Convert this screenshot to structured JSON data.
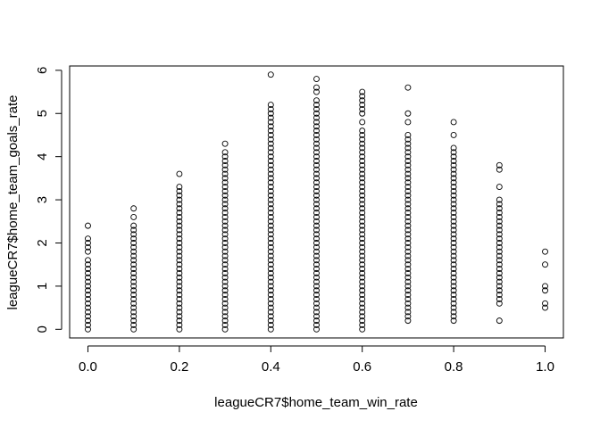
{
  "chart_data": {
    "type": "scatter",
    "title": "",
    "xlabel": "leagueCR7$home_team_win_rate",
    "ylabel": "leagueCR7$home_team_goals_rate",
    "xlim": [
      -0.04,
      1.04
    ],
    "ylim": [
      -0.2,
      6.1
    ],
    "x_ticks": [
      0.0,
      0.2,
      0.4,
      0.6,
      0.8,
      1.0
    ],
    "x_tick_labels": [
      "0.0",
      "0.2",
      "0.4",
      "0.6",
      "0.8",
      "1.0"
    ],
    "y_ticks": [
      0,
      1,
      2,
      3,
      4,
      5,
      6
    ],
    "y_tick_labels": [
      "0",
      "1",
      "2",
      "3",
      "4",
      "5",
      "6"
    ],
    "grid": false,
    "legend": "none",
    "marker": "open-circle",
    "columns": [
      {
        "x": 0.0,
        "y": [
          0.0,
          0.1,
          0.2,
          0.3,
          0.4,
          0.5,
          0.6,
          0.7,
          0.8,
          0.9,
          1.0,
          1.1,
          1.2,
          1.3,
          1.4,
          1.5,
          1.6,
          1.8,
          1.9,
          2.0,
          2.1,
          2.4
        ]
      },
      {
        "x": 0.1,
        "y": [
          0.0,
          0.1,
          0.2,
          0.3,
          0.4,
          0.5,
          0.6,
          0.7,
          0.8,
          0.9,
          1.0,
          1.1,
          1.2,
          1.3,
          1.4,
          1.5,
          1.6,
          1.7,
          1.8,
          1.9,
          2.0,
          2.1,
          2.2,
          2.3,
          2.4,
          2.6,
          2.8
        ]
      },
      {
        "x": 0.2,
        "y": [
          0.0,
          0.1,
          0.2,
          0.3,
          0.4,
          0.5,
          0.6,
          0.7,
          0.8,
          0.9,
          1.0,
          1.1,
          1.2,
          1.3,
          1.4,
          1.5,
          1.6,
          1.7,
          1.8,
          1.9,
          2.0,
          2.1,
          2.2,
          2.3,
          2.4,
          2.5,
          2.6,
          2.7,
          2.8,
          2.9,
          3.0,
          3.1,
          3.2,
          3.3,
          3.6
        ]
      },
      {
        "x": 0.3,
        "y": [
          0.0,
          0.1,
          0.2,
          0.3,
          0.4,
          0.5,
          0.6,
          0.7,
          0.8,
          0.9,
          1.0,
          1.1,
          1.2,
          1.3,
          1.4,
          1.5,
          1.6,
          1.7,
          1.8,
          1.9,
          2.0,
          2.1,
          2.2,
          2.3,
          2.4,
          2.5,
          2.6,
          2.7,
          2.8,
          2.9,
          3.0,
          3.1,
          3.2,
          3.3,
          3.4,
          3.5,
          3.6,
          3.7,
          3.8,
          3.9,
          4.0,
          4.1,
          4.3
        ]
      },
      {
        "x": 0.4,
        "y": [
          0.0,
          0.1,
          0.2,
          0.3,
          0.4,
          0.5,
          0.6,
          0.7,
          0.8,
          0.9,
          1.0,
          1.1,
          1.2,
          1.3,
          1.4,
          1.5,
          1.6,
          1.7,
          1.8,
          1.9,
          2.0,
          2.1,
          2.2,
          2.3,
          2.4,
          2.5,
          2.6,
          2.7,
          2.8,
          2.9,
          3.0,
          3.1,
          3.2,
          3.3,
          3.4,
          3.5,
          3.6,
          3.7,
          3.8,
          3.9,
          4.0,
          4.1,
          4.2,
          4.3,
          4.4,
          4.5,
          4.6,
          4.7,
          4.8,
          4.9,
          5.0,
          5.1,
          5.2,
          5.9
        ]
      },
      {
        "x": 0.5,
        "y": [
          0.0,
          0.1,
          0.2,
          0.3,
          0.4,
          0.5,
          0.6,
          0.7,
          0.8,
          0.9,
          1.0,
          1.1,
          1.2,
          1.3,
          1.4,
          1.5,
          1.6,
          1.7,
          1.8,
          1.9,
          2.0,
          2.1,
          2.2,
          2.3,
          2.4,
          2.5,
          2.6,
          2.7,
          2.8,
          2.9,
          3.0,
          3.1,
          3.2,
          3.3,
          3.4,
          3.5,
          3.6,
          3.7,
          3.8,
          3.9,
          4.0,
          4.1,
          4.2,
          4.3,
          4.4,
          4.5,
          4.6,
          4.7,
          4.8,
          4.9,
          5.0,
          5.1,
          5.2,
          5.3,
          5.5,
          5.6,
          5.8
        ]
      },
      {
        "x": 0.6,
        "y": [
          0.0,
          0.1,
          0.2,
          0.3,
          0.4,
          0.5,
          0.6,
          0.7,
          0.8,
          0.9,
          1.0,
          1.1,
          1.2,
          1.3,
          1.4,
          1.5,
          1.6,
          1.7,
          1.8,
          1.9,
          2.0,
          2.1,
          2.2,
          2.3,
          2.4,
          2.5,
          2.6,
          2.7,
          2.8,
          2.9,
          3.0,
          3.1,
          3.2,
          3.3,
          3.4,
          3.5,
          3.6,
          3.7,
          3.8,
          3.9,
          4.0,
          4.1,
          4.2,
          4.3,
          4.4,
          4.5,
          4.6,
          4.8,
          5.0,
          5.1,
          5.2,
          5.3,
          5.4,
          5.5
        ]
      },
      {
        "x": 0.7,
        "y": [
          0.2,
          0.3,
          0.4,
          0.5,
          0.6,
          0.7,
          0.8,
          0.9,
          1.0,
          1.1,
          1.2,
          1.3,
          1.4,
          1.5,
          1.6,
          1.7,
          1.8,
          1.9,
          2.0,
          2.1,
          2.2,
          2.3,
          2.4,
          2.5,
          2.6,
          2.7,
          2.8,
          2.9,
          3.0,
          3.1,
          3.2,
          3.3,
          3.4,
          3.5,
          3.6,
          3.7,
          3.8,
          3.9,
          4.0,
          4.1,
          4.2,
          4.3,
          4.4,
          4.5,
          4.8,
          5.0,
          5.6
        ]
      },
      {
        "x": 0.8,
        "y": [
          0.2,
          0.3,
          0.4,
          0.5,
          0.6,
          0.7,
          0.8,
          0.9,
          1.0,
          1.1,
          1.2,
          1.3,
          1.4,
          1.5,
          1.6,
          1.7,
          1.8,
          1.9,
          2.0,
          2.1,
          2.2,
          2.3,
          2.4,
          2.5,
          2.6,
          2.7,
          2.8,
          2.9,
          3.0,
          3.1,
          3.2,
          3.3,
          3.4,
          3.5,
          3.6,
          3.7,
          3.8,
          3.9,
          4.0,
          4.1,
          4.2,
          4.5,
          4.8
        ]
      },
      {
        "x": 0.9,
        "y": [
          0.2,
          0.6,
          0.7,
          0.8,
          0.9,
          1.0,
          1.1,
          1.2,
          1.3,
          1.4,
          1.5,
          1.6,
          1.7,
          1.8,
          1.9,
          2.0,
          2.1,
          2.2,
          2.3,
          2.4,
          2.5,
          2.6,
          2.7,
          2.8,
          2.9,
          3.0,
          3.3,
          3.7,
          3.8
        ]
      },
      {
        "x": 1.0,
        "y": [
          0.5,
          0.6,
          0.9,
          1.0,
          1.5,
          1.8
        ]
      }
    ]
  }
}
